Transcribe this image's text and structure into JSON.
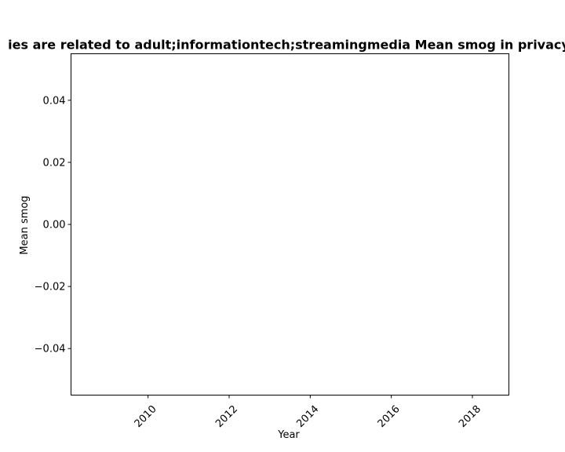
{
  "chart_data": {
    "type": "line",
    "title": "ies are related to adult;informationtech;streamingmedia Mean smog in privacy",
    "xlabel": "Year",
    "ylabel": "Mean smog",
    "x_ticks": [
      2010,
      2012,
      2014,
      2016,
      2018
    ],
    "x_tick_labels": [
      "2010",
      "2012",
      "2014",
      "2016",
      "2018"
    ],
    "y_ticks": [
      0.04,
      0.02,
      0.0,
      -0.02,
      -0.04
    ],
    "y_tick_labels": [
      "0.04",
      "0.02",
      "0.00",
      "−0.02",
      "−0.04"
    ],
    "xlim": [
      2008.1,
      2018.9
    ],
    "ylim": [
      -0.055,
      0.055
    ],
    "x_tick_rotation_deg": 45,
    "grid": false,
    "series": []
  }
}
